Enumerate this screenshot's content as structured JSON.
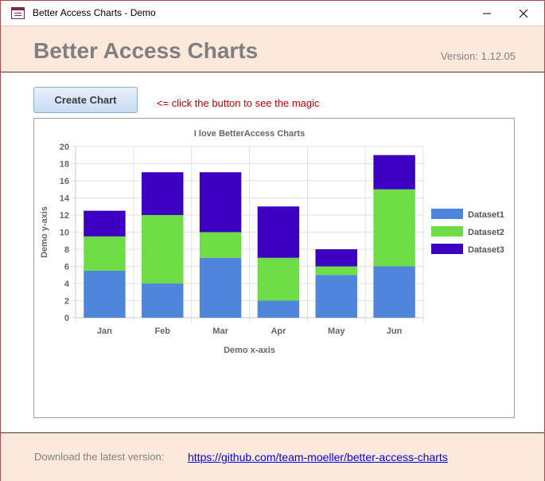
{
  "window": {
    "title": "Better Access Charts - Demo",
    "minimize_icon": "minimize-icon",
    "close_icon": "close-icon"
  },
  "header": {
    "title": "Better Access Charts",
    "version": "Version: 1.12.05"
  },
  "toolbar": {
    "create_label": "Create Chart",
    "hint": "<= click the button to see the magic"
  },
  "footer": {
    "download_label": "Download the latest version:",
    "link": "https://github.com/team-moeller/better-access-charts"
  },
  "chart_data": {
    "type": "bar",
    "stacked": true,
    "title": "I love BetterAccess Charts",
    "xlabel": "Demo x-axis",
    "ylabel": "Demo y-axis",
    "categories": [
      "Jan",
      "Feb",
      "Mar",
      "Apr",
      "May",
      "Jun"
    ],
    "ylim": [
      0,
      20
    ],
    "yticks": [
      "0",
      "2",
      "4",
      "6",
      "8",
      "10",
      "12",
      "14",
      "16",
      "18",
      "20"
    ],
    "grid": true,
    "legend_position": "right",
    "series": [
      {
        "name": "Dataset1",
        "color": "#4f86dc",
        "values": [
          5.5,
          4,
          7,
          2,
          5,
          6
        ]
      },
      {
        "name": "Dataset2",
        "color": "#6ddc45",
        "values": [
          4,
          8,
          3,
          5,
          1,
          9
        ]
      },
      {
        "name": "Dataset3",
        "color": "#3d00c2",
        "values": [
          3,
          5,
          7,
          6,
          2,
          4
        ]
      }
    ]
  }
}
